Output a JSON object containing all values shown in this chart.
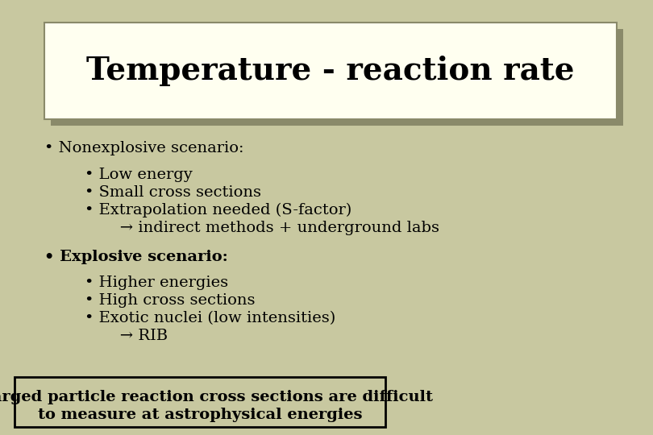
{
  "title": "Temperature - reaction rate",
  "background_color": "#c8c8a0",
  "title_box_color": "#fffff0",
  "title_box_shadow_color": "#8a8a6a",
  "title_font_size": 28,
  "body_font_size": 14,
  "bullet1_header": "• Nonexplosive scenario:",
  "bullet1_items": [
    "• Low energy",
    "• Small cross sections",
    "• Extrapolation needed (S-factor)",
    "       → indirect methods + underground labs"
  ],
  "bullet2_header": "• Explosive scenario:",
  "bullet2_items": [
    "• Higher energies",
    "• High cross sections",
    "• Exotic nuclei (low intensities)",
    "       → RIB"
  ],
  "footer_line1": "Charged particle reaction cross sections are difficult",
  "footer_line2": "to measure at astrophysical energies",
  "footer_box_border": "#000000"
}
